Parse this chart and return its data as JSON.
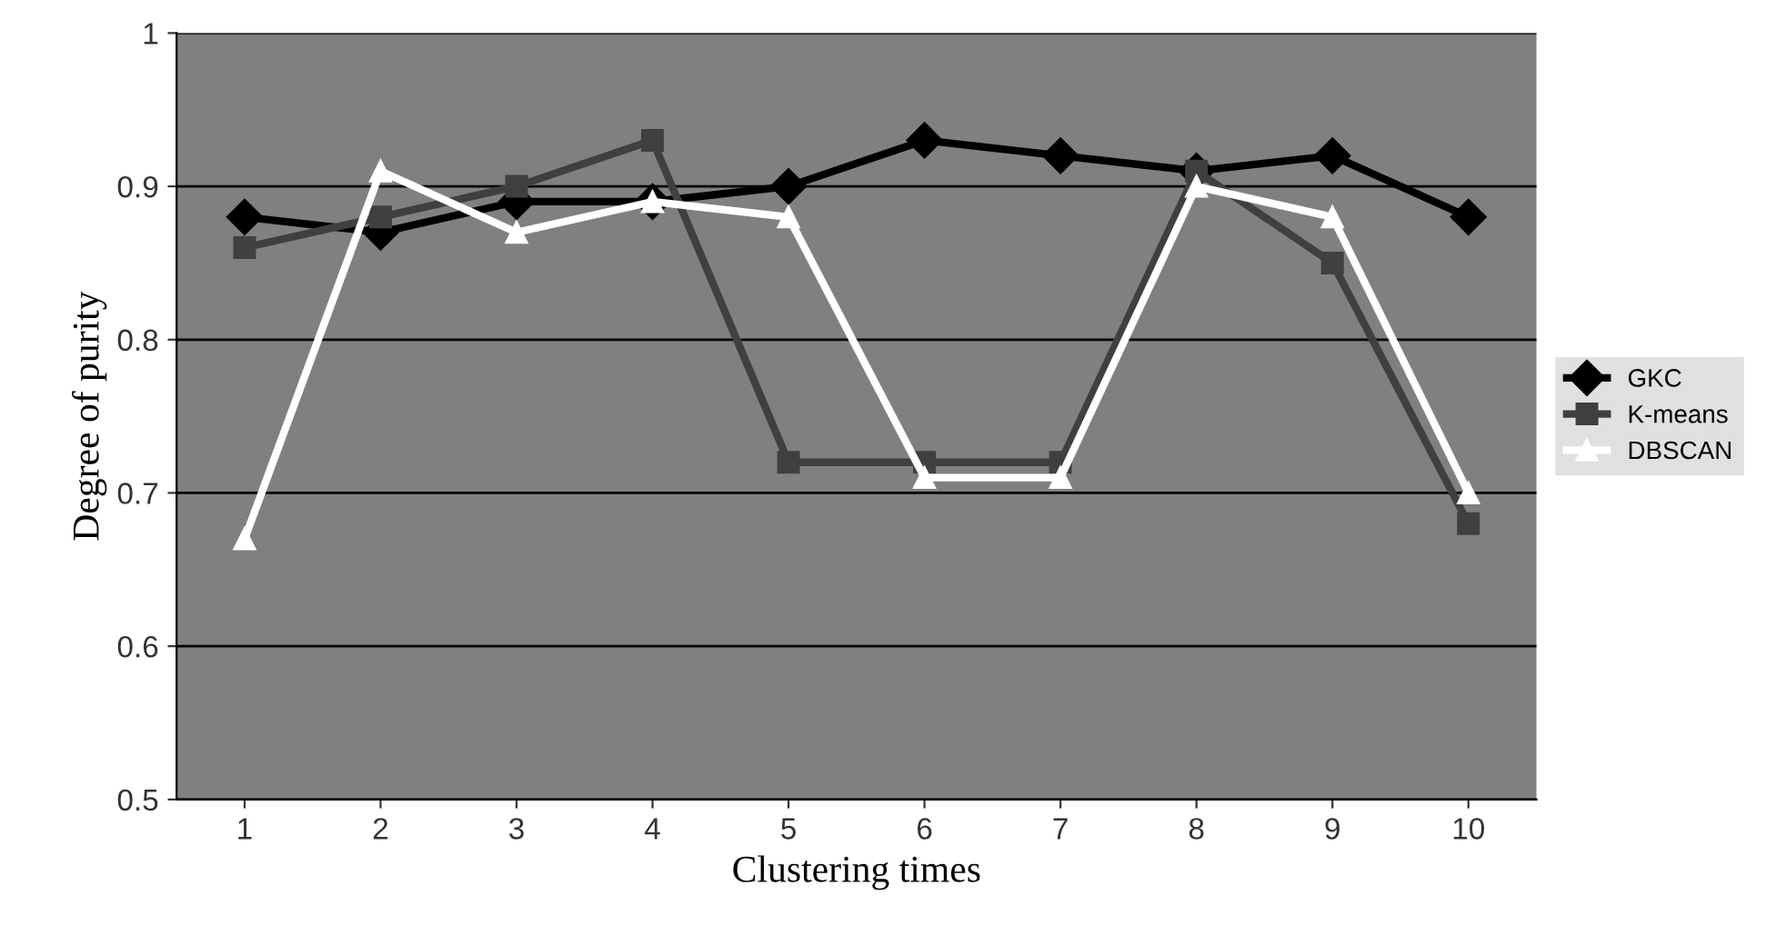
{
  "chart_data": {
    "type": "line",
    "xlabel": "Clustering times",
    "ylabel": "Degree of purity",
    "categories": [
      "1",
      "2",
      "3",
      "4",
      "5",
      "6",
      "7",
      "8",
      "9",
      "10"
    ],
    "series": [
      {
        "name": "GKC",
        "color": "#000000",
        "marker": "diamond",
        "values": [
          0.88,
          0.87,
          0.89,
          0.89,
          0.9,
          0.93,
          0.92,
          0.91,
          0.92,
          0.88
        ]
      },
      {
        "name": "K-means",
        "color": "#404040",
        "marker": "square",
        "values": [
          0.86,
          0.88,
          0.9,
          0.93,
          0.72,
          0.72,
          0.72,
          0.91,
          0.85,
          0.68
        ]
      },
      {
        "name": "DBSCAN",
        "color": "#ffffff",
        "marker": "triangle",
        "values": [
          0.67,
          0.91,
          0.87,
          0.89,
          0.88,
          0.71,
          0.71,
          0.9,
          0.88,
          0.7
        ]
      }
    ],
    "ylim": [
      0.5,
      1
    ],
    "yticks": [
      0.5,
      0.6,
      0.7,
      0.8,
      0.9,
      1
    ],
    "grid": "y",
    "legend": "right",
    "line_style": "solid"
  }
}
